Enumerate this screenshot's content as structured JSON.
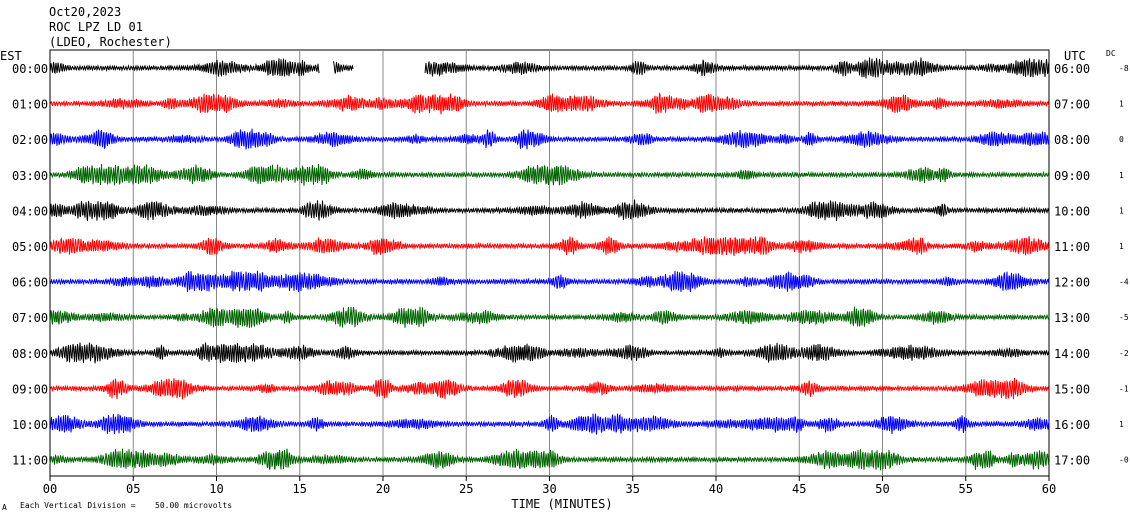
{
  "header": {
    "date": "Oct20,2023",
    "station": "ROC LPZ LD 01",
    "network": "(LDEO, Rochester)"
  },
  "left_axis_label": "EST",
  "right_axis_label": "UTC",
  "dc_label": "DC",
  "footer": {
    "scale_note": "Each Vertical Division =",
    "scale_value": "50.00 microvolts",
    "corner_mark": "A"
  },
  "chart_data": {
    "type": "line",
    "xlabel": "TIME (MINUTES)",
    "xlim": [
      0,
      60
    ],
    "x_ticks": [
      "00",
      "05",
      "10",
      "15",
      "20",
      "25",
      "30",
      "35",
      "40",
      "45",
      "50",
      "55",
      "60"
    ],
    "colors": {
      "black": "#000000",
      "red": "#ff0000",
      "blue": "#0000ff",
      "green": "#006400"
    },
    "rows": [
      {
        "est": "00:00",
        "utc": "06:00",
        "dc": "-8",
        "color": "#000000",
        "gaps": [
          [
            16.2,
            17.0
          ],
          [
            18.2,
            22.5
          ]
        ]
      },
      {
        "est": "01:00",
        "utc": "07:00",
        "dc": "1",
        "color": "#ff0000",
        "gaps": []
      },
      {
        "est": "02:00",
        "utc": "08:00",
        "dc": "0",
        "color": "#0000ff",
        "gaps": []
      },
      {
        "est": "03:00",
        "utc": "09:00",
        "dc": "1",
        "color": "#006400",
        "gaps": []
      },
      {
        "est": "04:00",
        "utc": "10:00",
        "dc": "1",
        "color": "#000000",
        "gaps": []
      },
      {
        "est": "05:00",
        "utc": "11:00",
        "dc": "1",
        "color": "#ff0000",
        "gaps": []
      },
      {
        "est": "06:00",
        "utc": "12:00",
        "dc": "-4",
        "color": "#0000ff",
        "gaps": []
      },
      {
        "est": "07:00",
        "utc": "13:00",
        "dc": "-5",
        "color": "#006400",
        "gaps": []
      },
      {
        "est": "08:00",
        "utc": "14:00",
        "dc": "-2",
        "color": "#000000",
        "gaps": []
      },
      {
        "est": "09:00",
        "utc": "15:00",
        "dc": "-1",
        "color": "#ff0000",
        "gaps": []
      },
      {
        "est": "10:00",
        "utc": "16:00",
        "dc": "1",
        "color": "#0000ff",
        "gaps": []
      },
      {
        "est": "11:00",
        "utc": "17:00",
        "dc": "-0",
        "color": "#006400",
        "gaps": []
      }
    ]
  }
}
